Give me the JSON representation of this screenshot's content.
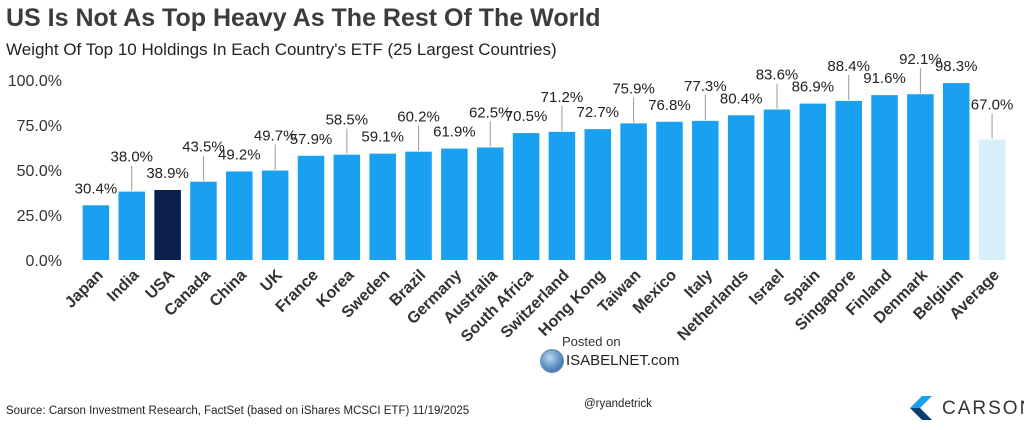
{
  "header": {
    "title": "US Is Not As Top Heavy As The Rest Of The World",
    "subtitle": "Weight Of Top 10 Holdings In Each Country's ETF (25 Largest Countries)"
  },
  "footer": {
    "source": "Source: Carson Investment Research, FactSet (based on iShares MCSCI ETF) 11/19/2025",
    "handle": "@ryandetrick",
    "posted_on": "Posted on",
    "site": "ISABELNET.com",
    "logo_text": "CARSON"
  },
  "colors": {
    "default_bar": "#1aa0f0",
    "highlight_bar": "#0b1f4b",
    "average_bar": "#d8eefb"
  },
  "chart_data": {
    "type": "bar",
    "title": "US Is Not As Top Heavy As The Rest Of The World",
    "subtitle": "Weight Of Top 10 Holdings In Each Country's ETF (25 Largest Countries)",
    "categories": [
      "Japan",
      "India",
      "USA",
      "Canada",
      "China",
      "UK",
      "France",
      "Korea",
      "Sweden",
      "Brazil",
      "Germany",
      "Australia",
      "South Africa",
      "Switzerland",
      "Hong Kong",
      "Taiwan",
      "Mexico",
      "Italy",
      "Netherlands",
      "Israel",
      "Spain",
      "Singapore",
      "Finland",
      "Denmark",
      "Belgium",
      "Average"
    ],
    "values": [
      30.4,
      38.0,
      38.9,
      43.5,
      49.2,
      49.7,
      57.9,
      58.5,
      59.1,
      60.2,
      61.9,
      62.5,
      70.5,
      71.2,
      72.7,
      75.9,
      76.8,
      77.3,
      80.4,
      83.6,
      86.9,
      88.4,
      91.6,
      92.1,
      98.3,
      67.0
    ],
    "data_labels": [
      "30.4%",
      "38.0%",
      "38.9%",
      "43.5%",
      "49.2%",
      "49.7%",
      "57.9%",
      "58.5%",
      "59.1%",
      "60.2%",
      "61.9%",
      "62.5%",
      "70.5%",
      "71.2%",
      "72.7%",
      "75.9%",
      "76.8%",
      "77.3%",
      "80.4%",
      "83.6%",
      "86.9%",
      "88.4%",
      "91.6%",
      "92.1%",
      "98.3%",
      "67.0%"
    ],
    "highlight": [
      "USA"
    ],
    "average_category": "Average",
    "yticks": [
      "0.0%",
      "25.0%",
      "50.0%",
      "75.0%",
      "100.0%"
    ],
    "ylim": [
      0,
      100
    ],
    "xlabel": "",
    "ylabel": "",
    "grid": false,
    "legend": "none"
  }
}
